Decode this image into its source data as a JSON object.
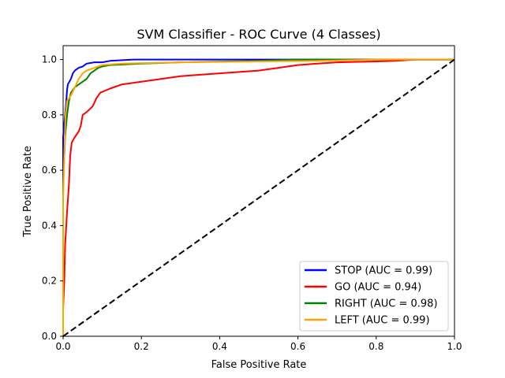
{
  "chart_data": {
    "type": "line",
    "title": "SVM Classifier - ROC Curve (4 Classes)",
    "xlabel": "False Positive Rate",
    "ylabel": "True Positive Rate",
    "xlim": [
      0,
      1
    ],
    "ylim": [
      0,
      1.05
    ],
    "xticks": [
      "0.0",
      "0.2",
      "0.4",
      "0.6",
      "0.8",
      "1.0"
    ],
    "yticks": [
      "0.0",
      "0.2",
      "0.4",
      "0.6",
      "0.8",
      "1.0"
    ],
    "grid": false,
    "legend_position": "lower-right",
    "series": [
      {
        "name": "STOP (AUC = 0.99)",
        "color": "#0000ff",
        "points": [
          [
            0,
            0
          ],
          [
            0,
            0.72
          ],
          [
            0.005,
            0.8
          ],
          [
            0.008,
            0.85
          ],
          [
            0.01,
            0.89
          ],
          [
            0.012,
            0.91
          ],
          [
            0.02,
            0.93
          ],
          [
            0.025,
            0.95
          ],
          [
            0.03,
            0.96
          ],
          [
            0.04,
            0.97
          ],
          [
            0.05,
            0.975
          ],
          [
            0.06,
            0.985
          ],
          [
            0.08,
            0.99
          ],
          [
            0.1,
            0.99
          ],
          [
            0.12,
            0.995
          ],
          [
            0.18,
            1.0
          ],
          [
            0.4,
            1.0
          ],
          [
            1.0,
            1.0
          ]
        ]
      },
      {
        "name": "GO (AUC = 0.94)",
        "color": "#ff0000",
        "points": [
          [
            0,
            0
          ],
          [
            0,
            0.1
          ],
          [
            0.003,
            0.2
          ],
          [
            0.005,
            0.33
          ],
          [
            0.008,
            0.4
          ],
          [
            0.01,
            0.45
          ],
          [
            0.015,
            0.55
          ],
          [
            0.018,
            0.65
          ],
          [
            0.022,
            0.7
          ],
          [
            0.03,
            0.72
          ],
          [
            0.04,
            0.74
          ],
          [
            0.045,
            0.76
          ],
          [
            0.05,
            0.8
          ],
          [
            0.06,
            0.81
          ],
          [
            0.075,
            0.83
          ],
          [
            0.085,
            0.86
          ],
          [
            0.095,
            0.88
          ],
          [
            0.12,
            0.895
          ],
          [
            0.15,
            0.91
          ],
          [
            0.2,
            0.92
          ],
          [
            0.25,
            0.93
          ],
          [
            0.3,
            0.94
          ],
          [
            0.35,
            0.945
          ],
          [
            0.4,
            0.95
          ],
          [
            0.45,
            0.955
          ],
          [
            0.5,
            0.96
          ],
          [
            0.55,
            0.97
          ],
          [
            0.6,
            0.98
          ],
          [
            0.65,
            0.985
          ],
          [
            0.7,
            0.99
          ],
          [
            0.8,
            0.993
          ],
          [
            0.85,
            0.995
          ],
          [
            0.9,
            1.0
          ],
          [
            1.0,
            1.0
          ]
        ]
      },
      {
        "name": "RIGHT (AUC = 0.98)",
        "color": "#008000",
        "points": [
          [
            0,
            0
          ],
          [
            0,
            0.55
          ],
          [
            0.005,
            0.72
          ],
          [
            0.01,
            0.8
          ],
          [
            0.015,
            0.85
          ],
          [
            0.02,
            0.88
          ],
          [
            0.03,
            0.9
          ],
          [
            0.04,
            0.91
          ],
          [
            0.05,
            0.92
          ],
          [
            0.06,
            0.93
          ],
          [
            0.07,
            0.95
          ],
          [
            0.08,
            0.96
          ],
          [
            0.09,
            0.97
          ],
          [
            0.1,
            0.975
          ],
          [
            0.12,
            0.98
          ],
          [
            0.2,
            0.985
          ],
          [
            0.3,
            0.99
          ],
          [
            0.5,
            0.995
          ],
          [
            0.6,
            1.0
          ],
          [
            1.0,
            1.0
          ]
        ]
      },
      {
        "name": "LEFT (AUC = 0.99)",
        "color": "#ffa500",
        "points": [
          [
            0,
            0
          ],
          [
            0,
            0.5
          ],
          [
            0.004,
            0.7
          ],
          [
            0.006,
            0.8
          ],
          [
            0.01,
            0.85
          ],
          [
            0.02,
            0.87
          ],
          [
            0.03,
            0.9
          ],
          [
            0.04,
            0.93
          ],
          [
            0.05,
            0.95
          ],
          [
            0.06,
            0.96
          ],
          [
            0.08,
            0.97
          ],
          [
            0.1,
            0.98
          ],
          [
            0.15,
            0.985
          ],
          [
            0.3,
            0.99
          ],
          [
            0.5,
            0.993
          ],
          [
            0.65,
            0.995
          ],
          [
            0.8,
            1.0
          ],
          [
            1.0,
            1.0
          ]
        ]
      }
    ],
    "reference_line": {
      "style": "dashed",
      "color": "#000000",
      "points": [
        [
          0,
          0
        ],
        [
          1,
          1
        ]
      ]
    }
  }
}
